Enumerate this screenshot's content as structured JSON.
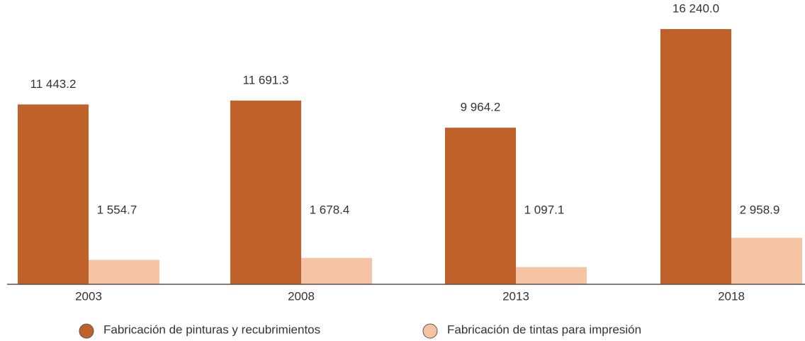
{
  "chart_data": {
    "type": "bar",
    "categories": [
      "2003",
      "2008",
      "2013",
      "2018"
    ],
    "series": [
      {
        "name": "Fabricación de pinturas y recubrimientos",
        "color": "#c1612a",
        "values": [
          11443.2,
          11691.3,
          9964.2,
          16240.0
        ],
        "value_labels": [
          "11 443.2",
          "11 691.3",
          "9 964.2",
          "16 240.0"
        ]
      },
      {
        "name": "Fabricación de tintas para impresión",
        "color": "#f6c4a5",
        "values": [
          1554.7,
          1678.4,
          1097.1,
          2958.9
        ],
        "value_labels": [
          "1 554.7",
          "1 678.4",
          "1 097.1",
          "2 958.9"
        ]
      }
    ],
    "legend": "bottom"
  }
}
